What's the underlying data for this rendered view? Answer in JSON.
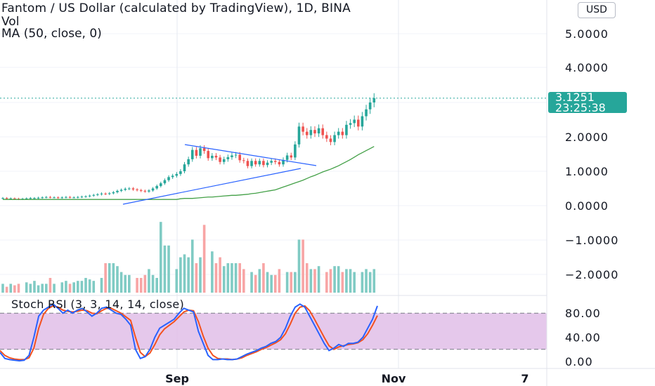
{
  "header": {
    "title": "Fantom / US Dollar (calculated by TradingView), 1D, BINA",
    "vol_label": "Vol",
    "ma_label": "MA (50, close, 0)",
    "currency_button": "USD"
  },
  "last_price": {
    "price": "3.1251",
    "countdown": "23:25:38"
  },
  "colors": {
    "up": "#26a69a",
    "down": "#ef5350",
    "ma": "#43a047",
    "trend": "#2962ff",
    "stoch_k": "#2962ff",
    "stoch_d": "#f4511e",
    "stoch_band": "#e1bee7"
  },
  "chart_data": [
    {
      "type": "line",
      "x_ticks": [
        "Sep",
        "Nov",
        "7"
      ],
      "y_ticks": [
        "5.0000",
        "4.0000",
        "2.0000",
        "1.0000",
        "0.0000",
        "−1.0000",
        "−2.0000"
      ],
      "price_close": [
        0.22,
        0.2,
        0.21,
        0.2,
        0.19,
        0.2,
        0.21,
        0.22,
        0.22,
        0.23,
        0.24,
        0.25,
        0.24,
        0.24,
        0.23,
        0.24,
        0.25,
        0.24,
        0.24,
        0.25,
        0.26,
        0.27,
        0.29,
        0.31,
        0.33,
        0.35,
        0.34,
        0.36,
        0.39,
        0.43,
        0.46,
        0.49,
        0.5,
        0.47,
        0.45,
        0.43,
        0.41,
        0.44,
        0.5,
        0.57,
        0.65,
        0.74,
        0.83,
        0.87,
        0.92,
        1.0,
        1.2,
        1.35,
        1.62,
        1.45,
        1.67,
        1.59,
        1.38,
        1.45,
        1.4,
        1.27,
        1.35,
        1.41,
        1.46,
        1.48,
        1.32,
        1.3,
        1.15,
        1.3,
        1.2,
        1.3,
        1.18,
        1.25,
        1.3,
        1.27,
        1.2,
        1.33,
        1.46,
        1.4,
        1.78,
        2.3,
        2.15,
        2.05,
        2.2,
        2.1,
        2.25,
        2.05,
        1.95,
        1.85,
        2.05,
        2.15,
        2.05,
        2.35,
        2.4,
        2.5,
        2.3,
        2.6,
        2.8,
        3.0,
        3.125
      ],
      "ma50": [
        0.2,
        0.21,
        0.21,
        0.21,
        0.22,
        0.23,
        0.24,
        0.25,
        0.25,
        0.26,
        0.27,
        0.28,
        0.29,
        0.3,
        0.3,
        0.31,
        0.32,
        0.33,
        0.35,
        0.36,
        0.38,
        0.4,
        0.42,
        0.44,
        0.46,
        0.5,
        0.54,
        0.58,
        0.62,
        0.66,
        0.7,
        0.74,
        0.79,
        0.84,
        0.88,
        0.93,
        0.98,
        1.02,
        1.06,
        1.11,
        1.16,
        1.22,
        1.28,
        1.34,
        1.41,
        1.48,
        1.54,
        1.6,
        1.66,
        1.72
      ],
      "volume": [
        0.3,
        0.2,
        0.3,
        0.25,
        0.3,
        0.35,
        0.3,
        0.4,
        0.25,
        0.3,
        0.3,
        0.5,
        0.3,
        0.35,
        0.4,
        0.3,
        0.35,
        0.4,
        0.4,
        0.5,
        0.45,
        0.4,
        0.5,
        1.0,
        1.0,
        1.0,
        0.9,
        0.7,
        0.6,
        0.6,
        0.5,
        0.5,
        0.6,
        0.8,
        0.6,
        0.5,
        2.4,
        1.6,
        1.6,
        0.8,
        1.2,
        1.3,
        1.2,
        1.8,
        1.0,
        1.2,
        2.3,
        1.4,
        1.0,
        1.2,
        0.9,
        1.0,
        1.0,
        1.0,
        1.0,
        0.8,
        0.7,
        0.6,
        0.8,
        1.0,
        0.7,
        0.6,
        0.6,
        0.8,
        0.7,
        0.7,
        0.7,
        1.8,
        1.8,
        1.0,
        0.8,
        0.8,
        0.9,
        0.7,
        0.8,
        0.9,
        0.9,
        0.7,
        0.8,
        0.8,
        0.7,
        0.7,
        0.8,
        0.7,
        0.8
      ],
      "stoch_rsi": {
        "label": "Stoch RSI (3, 3, 14, 14, close)",
        "y_ticks": [
          "80.00",
          "40.00",
          "0.00"
        ],
        "bands": [
          20,
          80
        ],
        "k": [
          15,
          5,
          3,
          2,
          1,
          2,
          10,
          40,
          75,
          85,
          90,
          95,
          88,
          80,
          85,
          80,
          85,
          88,
          82,
          75,
          80,
          88,
          90,
          85,
          80,
          78,
          70,
          60,
          20,
          5,
          8,
          20,
          40,
          55,
          60,
          65,
          70,
          80,
          88,
          85,
          82,
          50,
          30,
          10,
          3,
          3,
          4,
          3,
          3,
          4,
          8,
          12,
          15,
          18,
          22,
          25,
          30,
          33,
          40,
          55,
          75,
          90,
          95,
          90,
          75,
          60,
          45,
          30,
          18,
          22,
          28,
          25,
          30,
          30,
          32,
          40,
          55,
          70,
          92
        ],
        "d": [
          18,
          10,
          6,
          4,
          3,
          3,
          6,
          22,
          55,
          78,
          88,
          92,
          90,
          85,
          83,
          82,
          83,
          85,
          84,
          80,
          79,
          84,
          88,
          88,
          84,
          80,
          74,
          68,
          40,
          15,
          8,
          14,
          28,
          44,
          54,
          60,
          66,
          74,
          82,
          85,
          84,
          66,
          42,
          22,
          10,
          5,
          4,
          4,
          3,
          4,
          6,
          10,
          13,
          16,
          20,
          23,
          27,
          31,
          36,
          46,
          62,
          80,
          90,
          92,
          84,
          70,
          55,
          40,
          26,
          20,
          24,
          26,
          28,
          29,
          31,
          36,
          46,
          60,
          76
        ]
      }
    }
  ]
}
